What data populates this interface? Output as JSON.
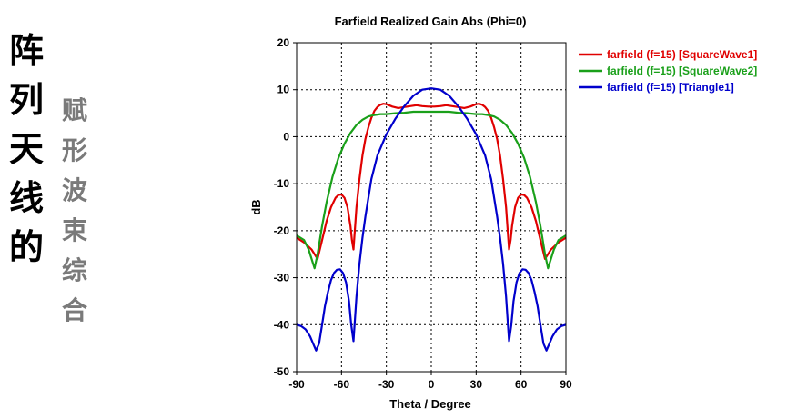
{
  "side_title": {
    "line1": [
      "阵",
      "列",
      "天",
      "线",
      "的"
    ],
    "line2": [
      "赋",
      "形",
      "波",
      "束",
      "综",
      "合"
    ]
  },
  "chart_data": {
    "type": "line",
    "title": "Farfield Realized Gain Abs (Phi=0)",
    "xlabel": "Theta / Degree",
    "ylabel": "dB",
    "xlim": [
      -90,
      90
    ],
    "ylim": [
      -50,
      20
    ],
    "xticks": [
      -90,
      -60,
      -30,
      0,
      30,
      60,
      90
    ],
    "yticks": [
      20,
      10,
      0,
      -10,
      -20,
      -30,
      -40,
      -50
    ],
    "grid": true,
    "legend_position": "top-right, outside plot",
    "series": [
      {
        "name": "farfield (f=15) [SquareWave1]",
        "color": "#e00000",
        "x": [
          -90,
          -85,
          -80,
          -76,
          -73,
          -70,
          -67,
          -64,
          -62,
          -60,
          -58,
          -56,
          -54,
          -53,
          -52,
          -50,
          -48,
          -46,
          -44,
          -42,
          -40,
          -38,
          -36,
          -34,
          -32,
          -30,
          -26,
          -22,
          -18,
          -14,
          -10,
          -6,
          -2,
          0,
          2,
          6,
          10,
          14,
          18,
          22,
          26,
          30,
          32,
          34,
          36,
          38,
          40,
          42,
          44,
          46,
          48,
          50,
          52,
          53,
          54,
          56,
          58,
          60,
          62,
          64,
          67,
          70,
          73,
          76,
          80,
          85,
          90
        ],
        "y": [
          -21.5,
          -22.5,
          -24,
          -26,
          -22,
          -18,
          -15,
          -13,
          -12.4,
          -12.3,
          -13,
          -15,
          -19,
          -22,
          -24,
          -15,
          -9,
          -4,
          -0.5,
          2,
          4,
          5.5,
          6.3,
          6.8,
          7,
          6.9,
          6.4,
          6.1,
          6.3,
          6.5,
          6.7,
          6.5,
          6.4,
          6.4,
          6.4,
          6.5,
          6.7,
          6.5,
          6.3,
          6.1,
          6.4,
          6.9,
          7,
          6.8,
          6.3,
          5.5,
          4,
          2,
          -0.5,
          -4,
          -9,
          -15,
          -24,
          -22,
          -19,
          -15,
          -13,
          -12.3,
          -12.4,
          -13,
          -15,
          -18,
          -22,
          -26,
          -24,
          -22.5,
          -21.5
        ]
      },
      {
        "name": "farfield (f=15) [SquareWave2]",
        "color": "#1aa01a",
        "x": [
          -90,
          -85,
          -82,
          -78,
          -76,
          -73,
          -70,
          -66,
          -62,
          -58,
          -54,
          -50,
          -46,
          -42,
          -38,
          -34,
          -30,
          -24,
          -18,
          -12,
          -6,
          0,
          6,
          12,
          18,
          24,
          30,
          34,
          38,
          42,
          46,
          50,
          54,
          58,
          62,
          66,
          70,
          73,
          76,
          78,
          82,
          85,
          90
        ],
        "y": [
          -21,
          -22,
          -24,
          -28,
          -25,
          -19,
          -14,
          -8.5,
          -4.5,
          -1.5,
          0.8,
          2.5,
          3.6,
          4.3,
          4.6,
          4.8,
          4.8,
          5,
          5.1,
          5.3,
          5.3,
          5.3,
          5.3,
          5.3,
          5.1,
          5,
          4.8,
          4.8,
          4.6,
          4.3,
          3.6,
          2.5,
          0.8,
          -1.5,
          -4.5,
          -8.5,
          -14,
          -19,
          -25,
          -28,
          -24,
          -22,
          -21
        ]
      },
      {
        "name": "farfield (f=15) [Triangle1]",
        "color": "#0000cc",
        "x": [
          -90,
          -87,
          -84,
          -81,
          -79,
          -77,
          -75,
          -73,
          -71,
          -69,
          -67,
          -65,
          -63,
          -61,
          -59,
          -57,
          -55,
          -53.5,
          -52,
          -50,
          -48,
          -46,
          -44,
          -42,
          -40,
          -36,
          -30,
          -24,
          -18,
          -12,
          -6,
          0,
          6,
          12,
          18,
          24,
          30,
          36,
          40,
          42,
          44,
          46,
          48,
          50,
          52,
          53.5,
          55,
          57,
          59,
          61,
          63,
          65,
          67,
          69,
          71,
          73,
          75,
          77,
          79,
          81,
          84,
          87,
          90
        ],
        "y": [
          -40,
          -40.3,
          -41,
          -42.5,
          -44,
          -45.5,
          -44,
          -40,
          -36,
          -33,
          -30.5,
          -29,
          -28.3,
          -28.2,
          -29,
          -31,
          -35,
          -40,
          -43.5,
          -34,
          -27,
          -21.5,
          -17,
          -13,
          -9,
          -4,
          0.5,
          3.8,
          6.5,
          8.7,
          10,
          10.3,
          10,
          8.7,
          6.5,
          3.8,
          0.5,
          -4,
          -9,
          -13,
          -17,
          -21.5,
          -27,
          -34,
          -43.5,
          -40,
          -35,
          -31,
          -29,
          -28.2,
          -28.3,
          -29,
          -30.5,
          -33,
          -36,
          -40,
          -44,
          -45.5,
          -44,
          -42.5,
          -41,
          -40.3,
          -40
        ]
      }
    ]
  }
}
